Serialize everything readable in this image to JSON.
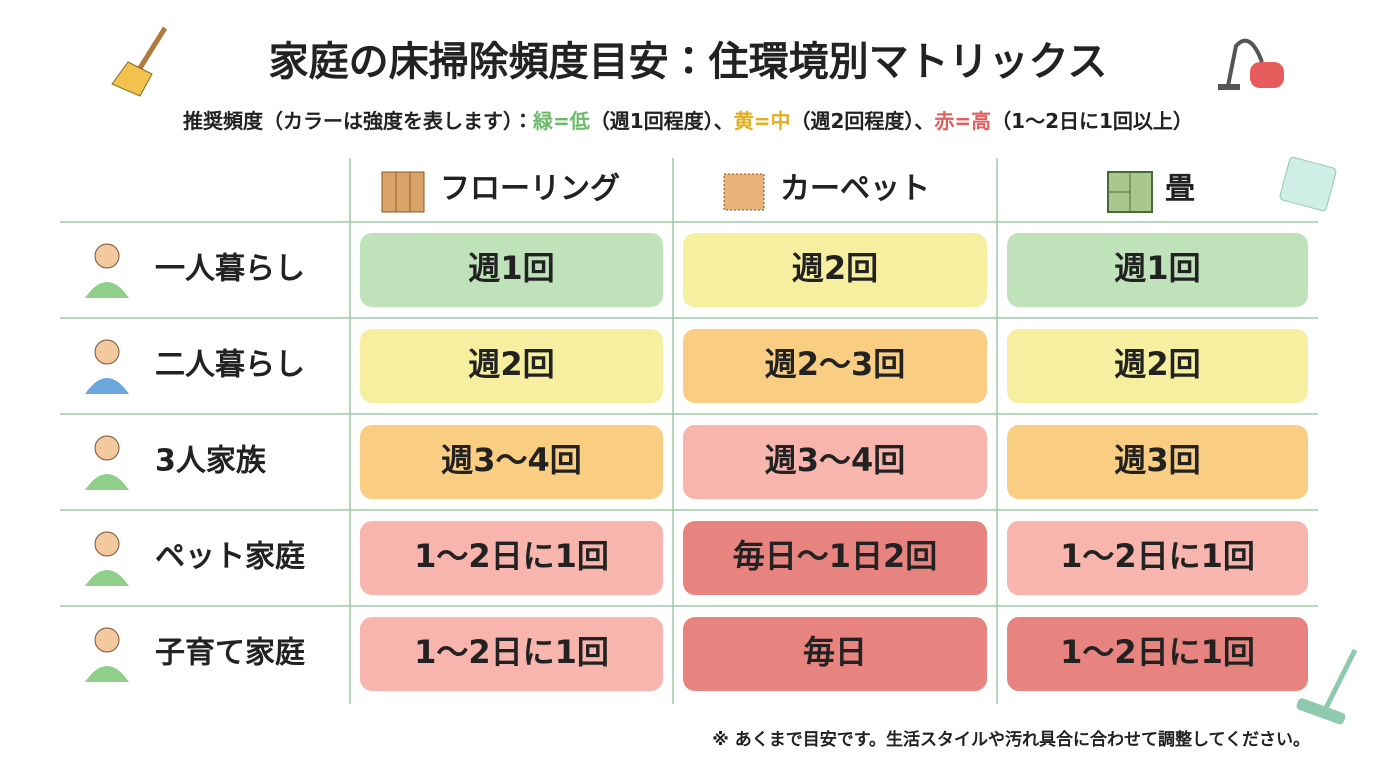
{
  "header": {
    "title": "家庭の床掃除頻度目安：住環境別マトリックス",
    "legend": [
      "推奨頻度（カラーは強度を表します）：",
      "緑=低",
      "（週1回程度）、",
      "黄=中",
      "（週2回程度）、",
      "赤=高",
      "（1〜2日に1回以上）"
    ]
  },
  "table": {
    "columns": [
      "フローリング",
      "カーペット",
      "畳"
    ],
    "rows": [
      {
        "label": "一人暮らし",
        "cells": [
          "週1回",
          "週2回",
          "週1回"
        ]
      },
      {
        "label": "二人暮らし",
        "cells": [
          "週2回",
          "週2〜3回",
          "週2回"
        ]
      },
      {
        "label": "3人家族",
        "cells": [
          "週3〜4回",
          "週3〜4回",
          "週3回"
        ]
      },
      {
        "label": "ペット家庭",
        "cells": [
          "1〜2日に1回",
          "毎日〜1日2回",
          "1〜2日に1回"
        ]
      },
      {
        "label": "子育て家庭",
        "cells": [
          "1〜2日に1回",
          "毎日",
          "1〜2日に1回"
        ]
      }
    ]
  },
  "footnote": "※ あくまで目安です。生活スタイルや汚れ具合に合わせて調整してください。"
}
